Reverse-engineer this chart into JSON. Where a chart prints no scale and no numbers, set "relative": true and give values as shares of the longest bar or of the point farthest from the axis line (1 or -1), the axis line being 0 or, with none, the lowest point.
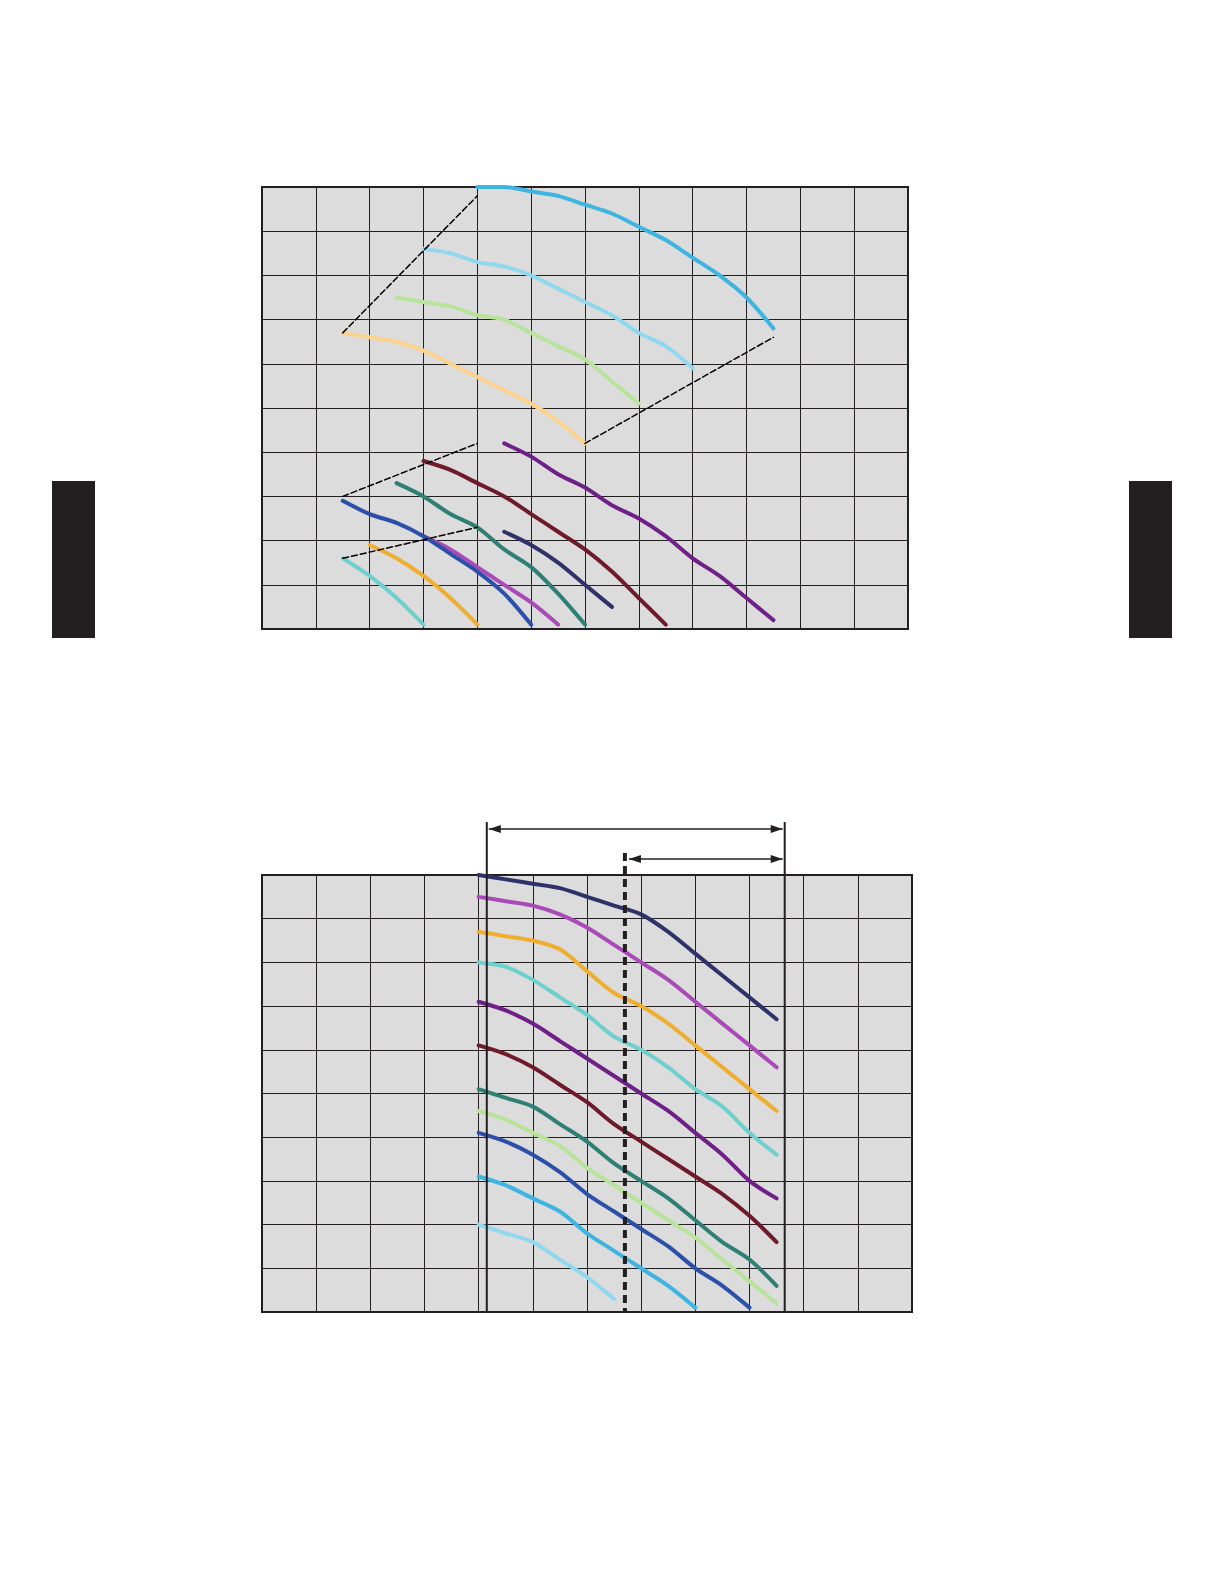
{
  "chart_data": [
    {
      "type": "line",
      "relative": true,
      "grid": true,
      "marker": "none",
      "line_style": "solid",
      "categories": [
        null,
        null,
        null,
        null,
        null,
        null,
        null,
        null,
        null,
        null,
        null,
        null,
        null,
        null,
        null,
        null,
        null,
        null,
        null,
        null,
        null,
        null,
        null,
        null,
        null
      ],
      "series": [
        {
          "color": "#3db5e0",
          "values": [
            null,
            null,
            null,
            null,
            null,
            null,
            null,
            null,
            1.0,
            1.0,
            0.99,
            0.98,
            0.96,
            0.94,
            0.91,
            0.88,
            0.84,
            0.8,
            0.75,
            0.68,
            null,
            null,
            null,
            null,
            null
          ]
        },
        {
          "color": "#8fd8ee",
          "values": [
            null,
            null,
            null,
            null,
            null,
            null,
            0.86,
            0.85,
            0.83,
            0.82,
            0.8,
            0.77,
            0.74,
            0.71,
            0.67,
            0.64,
            0.59,
            null,
            null,
            null,
            null,
            null,
            null,
            null,
            null
          ]
        },
        {
          "color": "#b8e39a",
          "values": [
            null,
            null,
            null,
            null,
            null,
            0.75,
            0.74,
            0.73,
            0.71,
            0.7,
            0.67,
            0.64,
            0.61,
            0.56,
            0.51,
            null,
            null,
            null,
            null,
            null,
            null,
            null,
            null,
            null,
            null
          ]
        },
        {
          "color": "#fcd38c",
          "values": [
            null,
            null,
            null,
            0.67,
            0.66,
            0.65,
            0.63,
            0.6,
            0.57,
            0.54,
            0.51,
            0.47,
            0.42,
            null,
            null,
            null,
            null,
            null,
            null,
            null,
            null,
            null,
            null,
            null,
            null
          ]
        },
        {
          "color": "#6f2087",
          "values": [
            null,
            null,
            null,
            null,
            null,
            null,
            null,
            null,
            null,
            0.42,
            0.39,
            0.35,
            0.32,
            0.28,
            0.25,
            0.21,
            0.16,
            0.12,
            0.07,
            0.02,
            null,
            null,
            null,
            null,
            null
          ]
        },
        {
          "color": "#6e1a2a",
          "values": [
            null,
            null,
            null,
            null,
            null,
            null,
            0.38,
            0.36,
            0.33,
            0.3,
            0.26,
            0.22,
            0.18,
            0.13,
            0.07,
            0.01,
            null,
            null,
            null,
            null,
            null,
            null,
            null,
            null,
            null
          ]
        },
        {
          "color": "#2f3268",
          "values": [
            null,
            null,
            null,
            null,
            null,
            null,
            null,
            null,
            null,
            0.22,
            0.19,
            0.15,
            0.1,
            0.05,
            null,
            null,
            null,
            null,
            null,
            null,
            null,
            null,
            null,
            null,
            null
          ]
        },
        {
          "color": "#2e7f74",
          "values": [
            null,
            null,
            null,
            null,
            null,
            0.33,
            0.3,
            0.26,
            0.23,
            0.18,
            0.14,
            0.08,
            0.01,
            null,
            null,
            null,
            null,
            null,
            null,
            null,
            null,
            null,
            null,
            null,
            null
          ]
        },
        {
          "color": "#a94ab8",
          "values": [
            null,
            null,
            null,
            null,
            null,
            null,
            0.21,
            0.18,
            0.14,
            0.1,
            0.06,
            0.01,
            null,
            null,
            null,
            null,
            null,
            null,
            null,
            null,
            null,
            null,
            null,
            null,
            null
          ]
        },
        {
          "color": "#2c4faa",
          "values": [
            null,
            null,
            null,
            0.29,
            0.26,
            0.24,
            0.21,
            0.17,
            0.13,
            0.08,
            0.01,
            null,
            null,
            null,
            null,
            null,
            null,
            null,
            null,
            null,
            null,
            null,
            null,
            null,
            null
          ]
        },
        {
          "color": "#efae2e",
          "values": [
            null,
            null,
            null,
            null,
            0.19,
            0.16,
            0.12,
            0.07,
            0.01,
            null,
            null,
            null,
            null,
            null,
            null,
            null,
            null,
            null,
            null,
            null,
            null,
            null,
            null,
            null,
            null
          ]
        },
        {
          "color": "#6dd0cc",
          "values": [
            null,
            null,
            null,
            0.16,
            0.12,
            0.07,
            0.01,
            null,
            null,
            null,
            null,
            null,
            null,
            null,
            null,
            null,
            null,
            null,
            null,
            null,
            null,
            null,
            null,
            null,
            null
          ]
        },
        {
          "color": "#000000",
          "line_style": "dashed",
          "values": [
            null,
            null,
            null,
            0.67,
            null,
            null,
            null,
            null,
            0.98,
            null,
            null,
            null,
            null,
            null,
            null,
            null,
            null,
            null,
            null,
            null,
            null,
            null,
            null,
            null,
            null
          ]
        },
        {
          "color": "#000000",
          "line_style": "dashed",
          "values": [
            null,
            null,
            null,
            null,
            null,
            null,
            null,
            null,
            null,
            null,
            null,
            null,
            0.42,
            null,
            null,
            null,
            null,
            null,
            null,
            0.66,
            null,
            null,
            null,
            null,
            null
          ]
        },
        {
          "color": "#000000",
          "line_style": "dashed",
          "values": [
            null,
            null,
            null,
            0.3,
            null,
            null,
            null,
            null,
            0.42,
            null,
            null,
            null,
            null,
            null,
            null,
            null,
            null,
            null,
            null,
            null,
            null,
            null,
            null,
            null,
            null
          ]
        },
        {
          "color": "#000000",
          "line_style": "dashed",
          "values": [
            null,
            null,
            null,
            0.16,
            null,
            null,
            null,
            null,
            0.23,
            null,
            null,
            null,
            null,
            null,
            null,
            null,
            null,
            null,
            null,
            null,
            null,
            null,
            null,
            null,
            null
          ]
        }
      ]
    },
    {
      "type": "line",
      "relative": true,
      "grid": true,
      "marker": "none",
      "line_style": "solid",
      "categories": [
        null,
        null,
        null,
        null,
        null,
        null,
        null,
        null,
        null,
        null,
        null,
        null,
        null,
        null,
        null,
        null,
        null,
        null,
        null,
        null,
        null,
        null,
        null,
        null,
        null
      ],
      "series": [
        {
          "color": "#2f3268",
          "values": [
            null,
            null,
            null,
            null,
            null,
            null,
            null,
            null,
            1.0,
            0.99,
            0.98,
            0.97,
            0.95,
            0.93,
            0.91,
            0.87,
            0.82,
            0.77,
            0.72,
            0.67,
            null,
            null,
            null,
            null,
            null
          ]
        },
        {
          "color": "#a94ab8",
          "values": [
            null,
            null,
            null,
            null,
            null,
            null,
            null,
            null,
            0.95,
            0.94,
            0.93,
            0.91,
            0.88,
            0.84,
            0.8,
            0.76,
            0.71,
            0.66,
            0.61,
            0.56,
            null,
            null,
            null,
            null,
            null
          ]
        },
        {
          "color": "#efae2e",
          "values": [
            null,
            null,
            null,
            null,
            null,
            null,
            null,
            null,
            0.87,
            0.86,
            0.85,
            0.83,
            0.78,
            0.73,
            0.7,
            0.66,
            0.61,
            0.56,
            0.51,
            0.46,
            null,
            null,
            null,
            null,
            null
          ]
        },
        {
          "color": "#6dd0cc",
          "values": [
            null,
            null,
            null,
            null,
            null,
            null,
            null,
            null,
            0.8,
            0.79,
            0.76,
            0.72,
            0.68,
            0.63,
            0.6,
            0.56,
            0.51,
            0.47,
            0.41,
            0.36,
            null,
            null,
            null,
            null,
            null
          ]
        },
        {
          "color": "#6f2087",
          "values": [
            null,
            null,
            null,
            null,
            null,
            null,
            null,
            null,
            0.71,
            0.69,
            0.66,
            0.62,
            0.58,
            0.54,
            0.5,
            0.46,
            0.41,
            0.36,
            0.3,
            0.26,
            null,
            null,
            null,
            null,
            null
          ]
        },
        {
          "color": "#6e1a2a",
          "values": [
            null,
            null,
            null,
            null,
            null,
            null,
            null,
            null,
            0.61,
            0.59,
            0.56,
            0.52,
            0.48,
            0.43,
            0.39,
            0.35,
            0.31,
            0.27,
            0.22,
            0.16,
            null,
            null,
            null,
            null,
            null
          ]
        },
        {
          "color": "#2e7f74",
          "values": [
            null,
            null,
            null,
            null,
            null,
            null,
            null,
            null,
            0.51,
            0.49,
            0.47,
            0.43,
            0.39,
            0.34,
            0.3,
            0.26,
            0.21,
            0.16,
            0.12,
            0.06,
            null,
            null,
            null,
            null,
            null
          ]
        },
        {
          "color": "#b8e39a",
          "values": [
            null,
            null,
            null,
            null,
            null,
            null,
            null,
            null,
            0.46,
            0.44,
            0.41,
            0.38,
            0.33,
            0.29,
            0.25,
            0.21,
            0.17,
            0.12,
            0.07,
            0.02,
            null,
            null,
            null,
            null,
            null
          ]
        },
        {
          "color": "#2c4faa",
          "values": [
            null,
            null,
            null,
            null,
            null,
            null,
            null,
            null,
            0.41,
            0.39,
            0.36,
            0.32,
            0.27,
            0.23,
            0.19,
            0.15,
            0.1,
            0.06,
            0.01,
            null,
            null,
            null,
            null,
            null,
            null
          ]
        },
        {
          "color": "#3db5e0",
          "values": [
            null,
            null,
            null,
            null,
            null,
            null,
            null,
            null,
            0.31,
            0.29,
            0.26,
            0.23,
            0.18,
            0.14,
            0.1,
            0.06,
            0.01,
            null,
            null,
            null,
            null,
            null,
            null,
            null,
            null
          ]
        },
        {
          "color": "#8fd8ee",
          "values": [
            null,
            null,
            null,
            null,
            null,
            null,
            null,
            null,
            0.2,
            0.18,
            0.16,
            0.12,
            0.08,
            0.03,
            null,
            null,
            null,
            null,
            null,
            null,
            null,
            null,
            null,
            null,
            null
          ]
        }
      ]
    }
  ]
}
